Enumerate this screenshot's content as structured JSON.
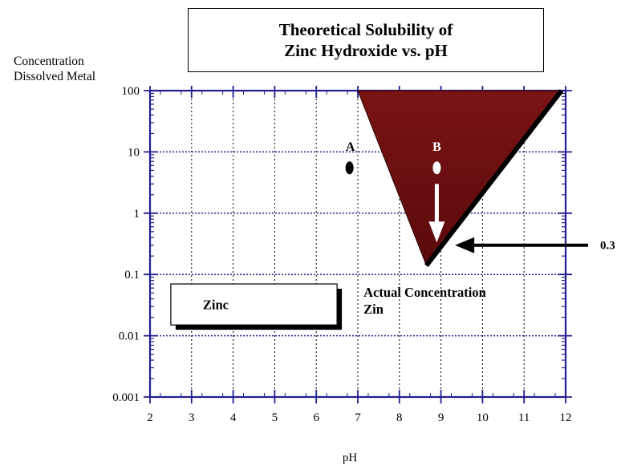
{
  "title_lines": [
    "Theoretical Solubility of",
    "Zinc Hydroxide vs. pH"
  ],
  "ylabel_lines": [
    "Concentration",
    "Dissolved Metal"
  ],
  "colors": {
    "axis": "#1f1f8f",
    "grid": "#1f1f8f",
    "triangle_fill_dark": "#5a0a0a",
    "triangle_fill": "#7a1414",
    "triangle_edge": "#000000",
    "point_a": "#000000",
    "point_b": "#ffffff",
    "arrow_b": "#ffffff",
    "arrow_right": "#000000"
  },
  "chart_data": {
    "type": "scatter",
    "title": "Theoretical Solubility of Zinc Hydroxide vs. pH",
    "xlabel": "pH",
    "ylabel": "Concentration Dissolved Metal",
    "xlim": [
      2,
      12
    ],
    "ylim": [
      0.001,
      100
    ],
    "yscale": "log",
    "grid": true,
    "x_ticks": [
      2,
      3,
      4,
      5,
      6,
      7,
      8,
      9,
      10,
      11,
      12
    ],
    "y_ticks": [
      {
        "value": 100,
        "label": "100"
      },
      {
        "value": 10,
        "label": "10"
      },
      {
        "value": 1,
        "label": "1"
      },
      {
        "value": 0.1,
        "label": "0.1"
      },
      {
        "value": 0.01,
        "label": "0.01"
      },
      {
        "value": 0.001,
        "label": "0.001"
      }
    ],
    "solubility_region": {
      "vertices": [
        [
          7.0,
          100
        ],
        [
          8.65,
          0.14
        ],
        [
          11.9,
          100
        ]
      ]
    },
    "points": [
      {
        "label": "A",
        "x": 6.8,
        "y": 5.5
      },
      {
        "label": "B",
        "x": 8.9,
        "y": 5.5
      }
    ],
    "arrow_b": {
      "x": 8.9,
      "y_from": 3.0,
      "y_to": 0.4
    },
    "pointer": {
      "label": "0.3",
      "x_from": 11.2,
      "x_to": 9.3,
      "y": 0.3
    },
    "annotations": [
      {
        "lines": [
          "Actual Concentration",
          "Zin"
        ],
        "x": 7.1,
        "y": 0.03
      },
      {
        "text": "Zinc",
        "x": 2.5,
        "x_end": 6.5,
        "y_top": 0.07,
        "y_bottom": 0.015
      }
    ]
  }
}
